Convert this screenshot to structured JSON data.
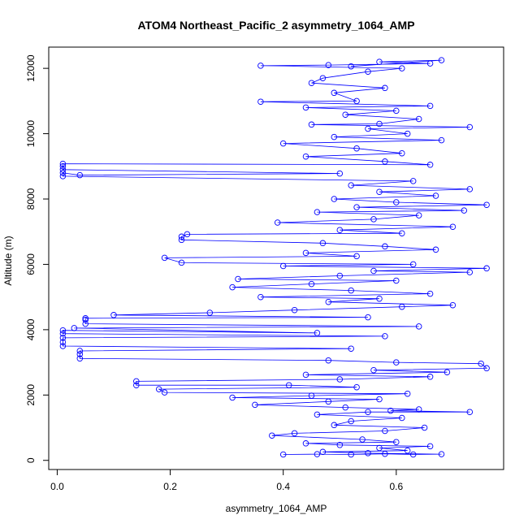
{
  "chart_data": {
    "type": "line",
    "title": "ATOM4 Northeast_Pacific_2 asymmetry_1064_AMP",
    "xlabel": "asymmetry_1064_AMP",
    "ylabel": "Altitude (m)",
    "xlim": [
      -0.015,
      0.79
    ],
    "ylim": [
      -280,
      12650
    ],
    "xticks": [
      0.0,
      0.2,
      0.4,
      0.6
    ],
    "xtick_labels": [
      "0.0",
      "0.2",
      "0.4",
      "0.6"
    ],
    "yticks": [
      0,
      2000,
      4000,
      6000,
      8000,
      10000,
      12000
    ],
    "ytick_labels": [
      "0",
      "2000",
      "4000",
      "6000",
      "8000",
      "10000",
      "12000"
    ],
    "grid": false,
    "series": [
      {
        "color": "#0000ff",
        "marker": "open-circle",
        "points": [
          [
            0.4,
            180
          ],
          [
            0.46,
            190
          ],
          [
            0.52,
            180
          ],
          [
            0.58,
            200
          ],
          [
            0.63,
            180
          ],
          [
            0.68,
            190
          ],
          [
            0.55,
            220
          ],
          [
            0.47,
            260
          ],
          [
            0.62,
            300
          ],
          [
            0.57,
            380
          ],
          [
            0.66,
            430
          ],
          [
            0.5,
            470
          ],
          [
            0.44,
            520
          ],
          [
            0.6,
            560
          ],
          [
            0.54,
            640
          ],
          [
            0.38,
            760
          ],
          [
            0.42,
            830
          ],
          [
            0.58,
            900
          ],
          [
            0.65,
            1000
          ],
          [
            0.49,
            1080
          ],
          [
            0.52,
            1200
          ],
          [
            0.61,
            1300
          ],
          [
            0.46,
            1400
          ],
          [
            0.55,
            1480
          ],
          [
            0.73,
            1480
          ],
          [
            0.59,
            1520
          ],
          [
            0.64,
            1560
          ],
          [
            0.51,
            1620
          ],
          [
            0.35,
            1700
          ],
          [
            0.48,
            1800
          ],
          [
            0.57,
            1870
          ],
          [
            0.31,
            1920
          ],
          [
            0.45,
            1980
          ],
          [
            0.62,
            2040
          ],
          [
            0.19,
            2080
          ],
          [
            0.18,
            2180
          ],
          [
            0.53,
            2240
          ],
          [
            0.41,
            2300
          ],
          [
            0.14,
            2300
          ],
          [
            0.14,
            2420
          ],
          [
            0.5,
            2480
          ],
          [
            0.66,
            2560
          ],
          [
            0.44,
            2620
          ],
          [
            0.69,
            2700
          ],
          [
            0.56,
            2760
          ],
          [
            0.76,
            2820
          ],
          [
            0.75,
            2960
          ],
          [
            0.6,
            3000
          ],
          [
            0.48,
            3060
          ],
          [
            0.04,
            3120
          ],
          [
            0.04,
            3250
          ],
          [
            0.04,
            3350
          ],
          [
            0.52,
            3420
          ],
          [
            0.01,
            3500
          ],
          [
            0.01,
            3620
          ],
          [
            0.01,
            3750
          ],
          [
            0.58,
            3800
          ],
          [
            0.01,
            3880
          ],
          [
            0.01,
            3980
          ],
          [
            0.46,
            3900
          ],
          [
            0.03,
            4050
          ],
          [
            0.64,
            4100
          ],
          [
            0.05,
            4180
          ],
          [
            0.05,
            4300
          ],
          [
            0.05,
            4350
          ],
          [
            0.55,
            4380
          ],
          [
            0.1,
            4450
          ],
          [
            0.27,
            4520
          ],
          [
            0.42,
            4600
          ],
          [
            0.61,
            4700
          ],
          [
            0.7,
            4750
          ],
          [
            0.48,
            4850
          ],
          [
            0.57,
            4950
          ],
          [
            0.36,
            5000
          ],
          [
            0.66,
            5100
          ],
          [
            0.52,
            5200
          ],
          [
            0.31,
            5300
          ],
          [
            0.45,
            5400
          ],
          [
            0.6,
            5500
          ],
          [
            0.32,
            5550
          ],
          [
            0.5,
            5650
          ],
          [
            0.73,
            5760
          ],
          [
            0.56,
            5800
          ],
          [
            0.76,
            5880
          ],
          [
            0.4,
            5950
          ],
          [
            0.63,
            6000
          ],
          [
            0.22,
            6050
          ],
          [
            0.19,
            6200
          ],
          [
            0.53,
            6250
          ],
          [
            0.44,
            6350
          ],
          [
            0.67,
            6450
          ],
          [
            0.58,
            6550
          ],
          [
            0.47,
            6650
          ],
          [
            0.22,
            6750
          ],
          [
            0.22,
            6850
          ],
          [
            0.23,
            6920
          ],
          [
            0.61,
            6950
          ],
          [
            0.5,
            7050
          ],
          [
            0.7,
            7150
          ],
          [
            0.39,
            7280
          ],
          [
            0.56,
            7380
          ],
          [
            0.64,
            7500
          ],
          [
            0.46,
            7600
          ],
          [
            0.72,
            7650
          ],
          [
            0.53,
            7750
          ],
          [
            0.76,
            7820
          ],
          [
            0.6,
            7900
          ],
          [
            0.49,
            8000
          ],
          [
            0.67,
            8100
          ],
          [
            0.57,
            8220
          ],
          [
            0.73,
            8300
          ],
          [
            0.52,
            8420
          ],
          [
            0.63,
            8550
          ],
          [
            0.01,
            8700
          ],
          [
            0.01,
            8800
          ],
          [
            0.04,
            8730
          ],
          [
            0.5,
            8780
          ],
          [
            0.01,
            8900
          ],
          [
            0.01,
            9000
          ],
          [
            0.01,
            9080
          ],
          [
            0.66,
            9050
          ],
          [
            0.58,
            9150
          ],
          [
            0.44,
            9300
          ],
          [
            0.61,
            9400
          ],
          [
            0.53,
            9550
          ],
          [
            0.4,
            9700
          ],
          [
            0.68,
            9800
          ],
          [
            0.49,
            9900
          ],
          [
            0.62,
            10000
          ],
          [
            0.55,
            10150
          ],
          [
            0.73,
            10200
          ],
          [
            0.45,
            10280
          ],
          [
            0.57,
            10300
          ],
          [
            0.64,
            10450
          ],
          [
            0.51,
            10580
          ],
          [
            0.6,
            10700
          ],
          [
            0.44,
            10800
          ],
          [
            0.66,
            10850
          ],
          [
            0.36,
            10980
          ],
          [
            0.53,
            11000
          ],
          [
            0.49,
            11250
          ],
          [
            0.58,
            11400
          ],
          [
            0.45,
            11550
          ],
          [
            0.47,
            11700
          ],
          [
            0.55,
            11900
          ],
          [
            0.61,
            12000
          ],
          [
            0.36,
            12080
          ],
          [
            0.48,
            12100
          ],
          [
            0.66,
            12150
          ],
          [
            0.57,
            12200
          ],
          [
            0.68,
            12250
          ],
          [
            0.52,
            12060
          ]
        ]
      }
    ]
  }
}
